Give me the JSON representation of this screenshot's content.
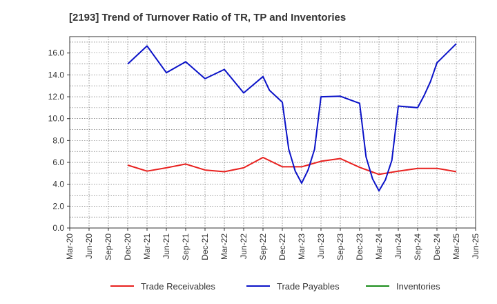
{
  "chart_data": {
    "type": "line",
    "title": "[2193]  Trend of Turnover Ratio of TR, TP and Inventories",
    "xlabel": "",
    "ylabel": "",
    "x_ticks": [
      "Mar-20",
      "Jun-20",
      "Sep-20",
      "Dec-20",
      "Mar-21",
      "Jun-21",
      "Sep-21",
      "Dec-21",
      "Mar-22",
      "Jun-22",
      "Sep-22",
      "Dec-22",
      "Mar-23",
      "Jun-23",
      "Sep-23",
      "Dec-23",
      "Mar-24",
      "Jun-24",
      "Sep-24",
      "Dec-24",
      "Mar-25",
      "Jun-25"
    ],
    "y_ticks": [
      "0.0",
      "2.0",
      "4.0",
      "6.0",
      "8.0",
      "10.0",
      "12.0",
      "14.0",
      "16.0"
    ],
    "ylim": [
      0,
      17.5
    ],
    "grid": true,
    "legend_position": "bottom",
    "series": [
      {
        "name": "Trade Receivables",
        "color": "#e8201e",
        "points": [
          [
            "Dec-20",
            5.75
          ],
          [
            "Mar-21",
            5.2
          ],
          [
            "Jun-21",
            5.5
          ],
          [
            "Sep-21",
            5.85
          ],
          [
            "Dec-21",
            5.3
          ],
          [
            "Mar-22",
            5.15
          ],
          [
            "Jun-22",
            5.5
          ],
          [
            "Sep-22",
            6.45
          ],
          [
            "Dec-22",
            5.6
          ],
          [
            "Mar-23",
            5.6
          ],
          [
            "Jun-23",
            6.1
          ],
          [
            "Sep-23",
            6.35
          ],
          [
            "Dec-23",
            5.55
          ],
          [
            "Mar-24",
            4.9
          ],
          [
            "Jun-24",
            5.2
          ],
          [
            "Sep-24",
            5.45
          ],
          [
            "Dec-24",
            5.45
          ],
          [
            "Mar-25",
            5.15
          ]
        ]
      },
      {
        "name": "Trade Payables",
        "color": "#0a12c8",
        "points": [
          [
            "Dec-20",
            15.0
          ],
          [
            "Mar-21",
            16.65
          ],
          [
            "Jun-21",
            14.2
          ],
          [
            "Sep-21",
            15.2
          ],
          [
            "Dec-21",
            13.65
          ],
          [
            "Mar-22",
            14.5
          ],
          [
            "Jun-22",
            12.35
          ],
          [
            "Sep-22",
            13.85
          ],
          [
            "Oct-22",
            12.6
          ],
          [
            "Dec-22",
            11.5
          ],
          [
            "Jan-23",
            7.2
          ],
          [
            "Feb-23",
            5.2
          ],
          [
            "Mar-23",
            4.1
          ],
          [
            "Apr-23",
            5.3
          ],
          [
            "May-23",
            7.2
          ],
          [
            "Jun-23",
            12.0
          ],
          [
            "Sep-23",
            12.05
          ],
          [
            "Dec-23",
            11.4
          ],
          [
            "Jan-24",
            6.5
          ],
          [
            "Feb-24",
            4.5
          ],
          [
            "Mar-24",
            3.4
          ],
          [
            "Apr-24",
            4.4
          ],
          [
            "May-24",
            6.2
          ],
          [
            "Jun-24",
            11.15
          ],
          [
            "Sep-24",
            11.0
          ],
          [
            "Oct-24",
            12.1
          ],
          [
            "Nov-24",
            13.4
          ],
          [
            "Dec-24",
            15.1
          ],
          [
            "Mar-25",
            16.85
          ]
        ]
      },
      {
        "name": "Inventories",
        "color": "#1a8c1a",
        "points": []
      }
    ]
  }
}
